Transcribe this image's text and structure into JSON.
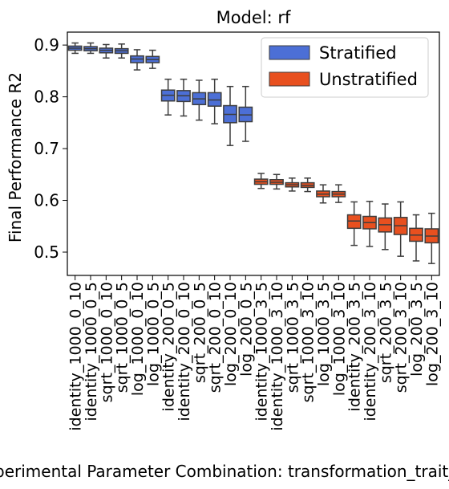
{
  "chart_data": {
    "type": "box",
    "title": "Model: rf",
    "xlabel": "Experimental Parameter Combination: transformation_trait_threshold",
    "ylabel": "Final Performance R2",
    "ylim": [
      0.455,
      0.925
    ],
    "yticks": [
      "0.5",
      "0.6",
      "0.7",
      "0.8",
      "0.9"
    ],
    "grid": false,
    "legend_position": "top-right",
    "series_colors": {
      "Stratified": "#4c6fd6",
      "Unstratified": "#e8501f"
    },
    "legend": [
      {
        "name": "Stratified",
        "color": "#4c6fd6"
      },
      {
        "name": "Unstratified",
        "color": "#e8501f"
      }
    ],
    "categories": [
      "identity_1000_0_10",
      "identity_1000_0_5",
      "sqrt_1000_0_10",
      "sqrt_1000_0_5",
      "log_1000_0_10",
      "log_1000_0_5",
      "identity_200_0_5",
      "identity_200_0_10",
      "sqrt_200_0_5",
      "sqrt_200_0_10",
      "log_200_0_10",
      "log_200_0_5",
      "identity_1000_3_5",
      "identity_1000_3_10",
      "sqrt_1000_3_5",
      "sqrt_1000_3_10",
      "log_1000_3_5",
      "log_1000_3_10",
      "identity_200_3_5",
      "identity_200_3_10",
      "sqrt_200_3_5",
      "sqrt_200_3_10",
      "log_200_3_5",
      "log_200_3_10"
    ],
    "series": [
      {
        "name": "Stratified",
        "boxes": [
          {
            "min": 0.884,
            "q1": 0.89,
            "median": 0.894,
            "q3": 0.898,
            "max": 0.904
          },
          {
            "min": 0.884,
            "q1": 0.889,
            "median": 0.893,
            "q3": 0.897,
            "max": 0.904
          },
          {
            "min": 0.875,
            "q1": 0.885,
            "median": 0.89,
            "q3": 0.894,
            "max": 0.901
          },
          {
            "min": 0.875,
            "q1": 0.884,
            "median": 0.889,
            "q3": 0.893,
            "max": 0.902
          },
          {
            "min": 0.852,
            "q1": 0.866,
            "median": 0.873,
            "q3": 0.879,
            "max": 0.891
          },
          {
            "min": 0.855,
            "q1": 0.866,
            "median": 0.872,
            "q3": 0.878,
            "max": 0.89
          },
          {
            "min": 0.765,
            "q1": 0.792,
            "median": 0.803,
            "q3": 0.813,
            "max": 0.834
          },
          {
            "min": 0.763,
            "q1": 0.791,
            "median": 0.802,
            "q3": 0.812,
            "max": 0.834
          },
          {
            "min": 0.755,
            "q1": 0.785,
            "median": 0.796,
            "q3": 0.808,
            "max": 0.832
          },
          {
            "min": 0.748,
            "q1": 0.782,
            "median": 0.794,
            "q3": 0.808,
            "max": 0.834
          },
          {
            "min": 0.706,
            "q1": 0.75,
            "median": 0.766,
            "q3": 0.783,
            "max": 0.82
          },
          {
            "min": 0.714,
            "q1": 0.752,
            "median": 0.765,
            "q3": 0.78,
            "max": 0.82
          }
        ]
      },
      {
        "name": "Unstratified",
        "boxes": [
          {
            "min": 0.623,
            "q1": 0.631,
            "median": 0.636,
            "q3": 0.641,
            "max": 0.652
          },
          {
            "min": 0.622,
            "q1": 0.631,
            "median": 0.635,
            "q3": 0.64,
            "max": 0.65
          },
          {
            "min": 0.618,
            "q1": 0.626,
            "median": 0.63,
            "q3": 0.634,
            "max": 0.643
          },
          {
            "min": 0.617,
            "q1": 0.625,
            "median": 0.629,
            "q3": 0.634,
            "max": 0.643
          },
          {
            "min": 0.595,
            "q1": 0.607,
            "median": 0.612,
            "q3": 0.618,
            "max": 0.63
          },
          {
            "min": 0.596,
            "q1": 0.607,
            "median": 0.612,
            "q3": 0.617,
            "max": 0.63
          },
          {
            "min": 0.513,
            "q1": 0.546,
            "median": 0.56,
            "q3": 0.572,
            "max": 0.597
          },
          {
            "min": 0.511,
            "q1": 0.545,
            "median": 0.557,
            "q3": 0.569,
            "max": 0.598
          },
          {
            "min": 0.505,
            "q1": 0.539,
            "median": 0.553,
            "q3": 0.566,
            "max": 0.593
          },
          {
            "min": 0.492,
            "q1": 0.534,
            "median": 0.551,
            "q3": 0.567,
            "max": 0.597
          },
          {
            "min": 0.483,
            "q1": 0.521,
            "median": 0.533,
            "q3": 0.546,
            "max": 0.572
          },
          {
            "min": 0.478,
            "q1": 0.518,
            "median": 0.531,
            "q3": 0.545,
            "max": 0.575
          }
        ]
      }
    ]
  }
}
